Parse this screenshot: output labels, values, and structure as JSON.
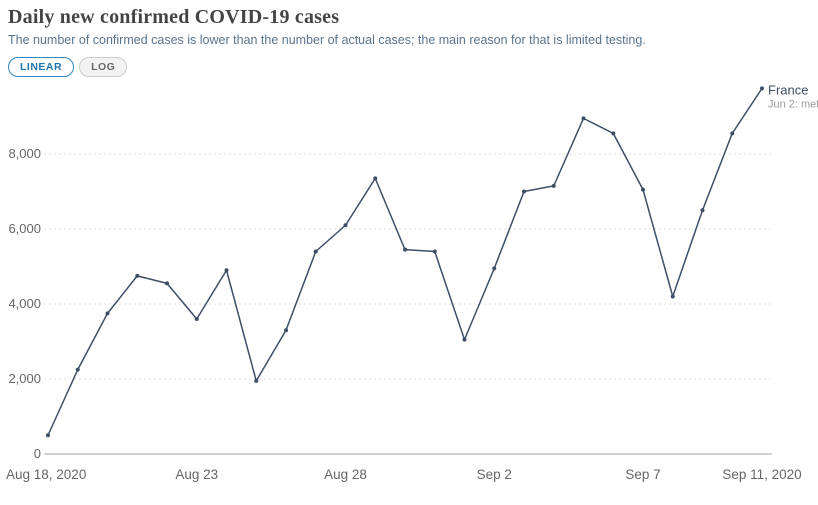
{
  "header": {
    "title": "Daily new confirmed COVID-19 cases",
    "subtitle": "The number of confirmed cases is lower than the number of actual cases; the main reason for that is limited testing."
  },
  "controls": {
    "linear_label": "LINEAR",
    "log_label": "LOG"
  },
  "chart_data": {
    "type": "line",
    "title": "Daily new confirmed COVID-19 cases",
    "x": [
      "Aug 18, 2020",
      "Aug 19, 2020",
      "Aug 20, 2020",
      "Aug 21, 2020",
      "Aug 22, 2020",
      "Aug 23, 2020",
      "Aug 24, 2020",
      "Aug 25, 2020",
      "Aug 26, 2020",
      "Aug 27, 2020",
      "Aug 28, 2020",
      "Aug 29, 2020",
      "Aug 30, 2020",
      "Aug 31, 2020",
      "Sep 1, 2020",
      "Sep 2, 2020",
      "Sep 3, 2020",
      "Sep 4, 2020",
      "Sep 5, 2020",
      "Sep 6, 2020",
      "Sep 7, 2020",
      "Sep 8, 2020",
      "Sep 9, 2020",
      "Sep 10, 2020",
      "Sep 11, 2020"
    ],
    "series": [
      {
        "name": "France",
        "values": [
          500,
          2250,
          3750,
          4750,
          4550,
          3600,
          4900,
          1950,
          3300,
          5400,
          6100,
          7350,
          5450,
          5400,
          3050,
          4950,
          7000,
          7150,
          8950,
          8550,
          7050,
          4200,
          6500,
          8550,
          9750
        ]
      }
    ],
    "x_ticks": [
      {
        "label": "Aug 18, 2020",
        "index": 0,
        "align": "start"
      },
      {
        "label": "Aug 23",
        "index": 5,
        "align": "middle"
      },
      {
        "label": "Aug 28",
        "index": 10,
        "align": "middle"
      },
      {
        "label": "Sep 2",
        "index": 15,
        "align": "middle"
      },
      {
        "label": "Sep 7",
        "index": 20,
        "align": "middle"
      },
      {
        "label": "Sep 11, 2020",
        "index": 24,
        "align": "middle"
      }
    ],
    "y_ticks": [
      0,
      2000,
      4000,
      6000,
      8000
    ],
    "ylim": [
      0,
      10000
    ],
    "grid": "horizontal-dashed",
    "legend_position": "end-of-line-label",
    "end_label": "France",
    "end_sublabel": "Jun 2: met",
    "colors": {
      "line": "#3d4e66",
      "grid": "#dddddd",
      "axis": "#a3a3a3",
      "tick_text": "#666666",
      "sublabel": "#9a9a9a"
    }
  }
}
